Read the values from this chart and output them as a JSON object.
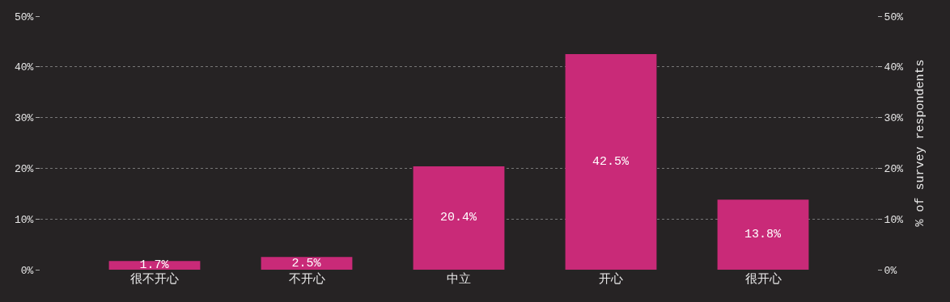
{
  "chart_data": {
    "type": "bar",
    "categories": [
      "很不开心",
      "不开心",
      "中立",
      "开心",
      "很开心"
    ],
    "values": [
      1.7,
      2.5,
      20.4,
      42.5,
      13.8
    ],
    "value_labels": [
      "1.7%",
      "2.5%",
      "20.4%",
      "42.5%",
      "13.8%"
    ],
    "color": "#c92a78",
    "ylim": [
      0,
      50
    ],
    "yticks": [
      {
        "value": 0,
        "label": "0%"
      },
      {
        "value": 10,
        "label": "10%"
      },
      {
        "value": 20,
        "label": "20%"
      },
      {
        "value": 30,
        "label": "30%"
      },
      {
        "value": 40,
        "label": "40%"
      },
      {
        "value": 50,
        "label": "50%"
      }
    ],
    "y2lim": [
      0,
      50
    ],
    "y2ticks": [
      {
        "value": 0,
        "label": "0%"
      },
      {
        "value": 10,
        "label": "10%"
      },
      {
        "value": 20,
        "label": "20%"
      },
      {
        "value": 30,
        "label": "30%"
      },
      {
        "value": 40,
        "label": "40%"
      },
      {
        "value": 50,
        "label": "50%"
      }
    ],
    "y2label": "% of survey respondents",
    "grid": "y"
  }
}
